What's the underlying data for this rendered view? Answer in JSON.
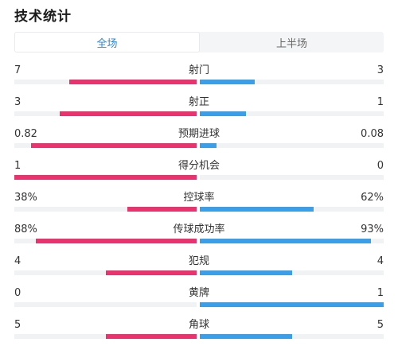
{
  "title": "技术统计",
  "tabs": [
    {
      "label": "全场",
      "active": true
    },
    {
      "label": "上半场",
      "active": false
    }
  ],
  "colors": {
    "left_bar": "#e8336f",
    "right_bar": "#3a9ee8",
    "active_tab": "#2a86d8"
  },
  "stats": [
    {
      "label": "射门",
      "left": "7",
      "right": "3",
      "left_fraction": 0.7,
      "right_fraction": 0.3
    },
    {
      "label": "射正",
      "left": "3",
      "right": "1",
      "left_fraction": 0.75,
      "right_fraction": 0.25
    },
    {
      "label": "预期进球",
      "left": "0.82",
      "right": "0.08",
      "left_fraction": 0.91,
      "right_fraction": 0.09
    },
    {
      "label": "得分机会",
      "left": "1",
      "right": "0",
      "left_fraction": 1.0,
      "right_fraction": 0.0
    },
    {
      "label": "控球率",
      "left": "38%",
      "right": "62%",
      "left_fraction": 0.38,
      "right_fraction": 0.62
    },
    {
      "label": "传球成功率",
      "left": "88%",
      "right": "93%",
      "left_fraction": 0.88,
      "right_fraction": 0.93
    },
    {
      "label": "犯规",
      "left": "4",
      "right": "4",
      "left_fraction": 0.5,
      "right_fraction": 0.5
    },
    {
      "label": "黄牌",
      "left": "0",
      "right": "1",
      "left_fraction": 0.0,
      "right_fraction": 1.0
    },
    {
      "label": "角球",
      "left": "5",
      "right": "5",
      "left_fraction": 0.5,
      "right_fraction": 0.5
    }
  ]
}
